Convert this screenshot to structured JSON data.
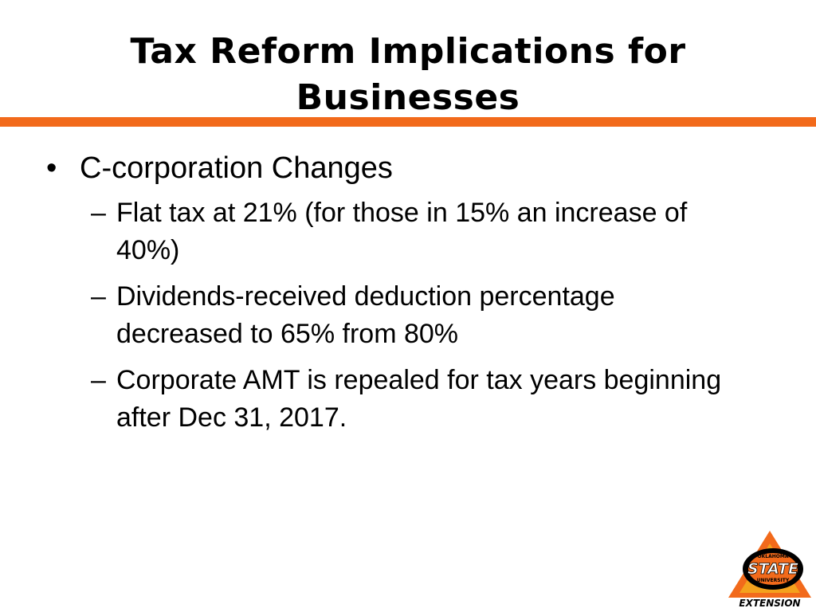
{
  "slide": {
    "title_line1": "Tax Reform Implications for",
    "title_line2": "Businesses",
    "bullet": {
      "marker": "•",
      "text": "C-corporation Changes"
    },
    "sub_marker": "–",
    "sub_items": [
      {
        "text": "Flat tax at 21% (for those in 15% an increase of 40%)"
      },
      {
        "text": "Dividends-received deduction percentage decreased to 65% from 80%"
      },
      {
        "text": "Corporate AMT is repealed for tax years beginning after Dec 31, 2017."
      }
    ],
    "logo": {
      "top_text": "OKLAHOMA",
      "main_text": "STATE",
      "sub_text": "UNIVERSITY",
      "bottom_text": "EXTENSION",
      "orange": "#f26a1b",
      "gold": "#f4a11d",
      "black": "#000000"
    },
    "colors": {
      "accent": "#f26a1b",
      "text": "#000000",
      "background": "#ffffff"
    }
  }
}
